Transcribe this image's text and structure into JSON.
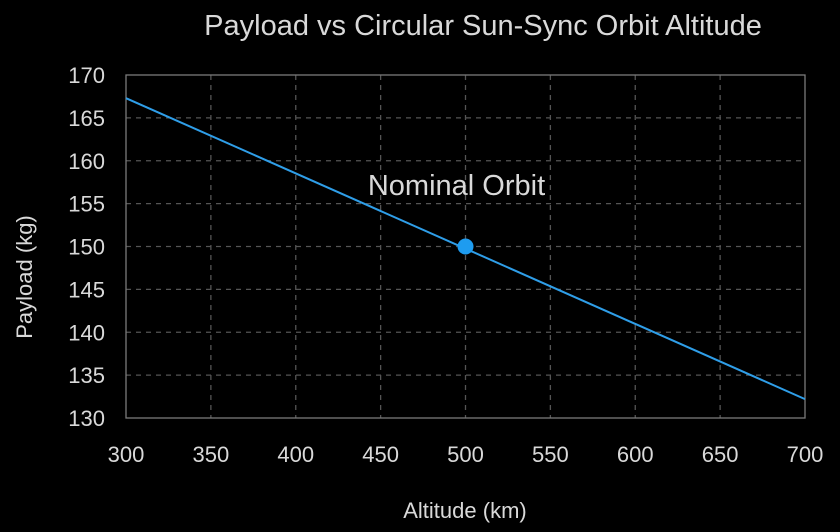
{
  "chart_data": {
    "type": "line",
    "title": "Payload vs Circular Sun-Sync Orbit Altitude",
    "xlabel": "Altitude (km)",
    "ylabel": "Payload (kg)",
    "xlim": [
      300,
      700
    ],
    "ylim": [
      130,
      170
    ],
    "x_ticks": [
      "300",
      "350",
      "400",
      "450",
      "500",
      "550",
      "600",
      "650",
      "700"
    ],
    "y_ticks": [
      "130",
      "135",
      "140",
      "145",
      "150",
      "155",
      "160",
      "165",
      "170"
    ],
    "grid": true,
    "series": [
      {
        "x": [
          300,
          700
        ],
        "y": [
          167.3,
          132.2
        ],
        "color": "#2f9ee8"
      }
    ],
    "highlight_point": {
      "x": 500,
      "y": 150,
      "color": "#1e9cf0"
    },
    "annotation": {
      "text": "Nominal Orbit",
      "x": 500,
      "y": 158
    },
    "colors": {
      "background": "#000000",
      "text": "#d9d9d9",
      "grid": "#555555",
      "frame": "#7a7a7a"
    }
  }
}
